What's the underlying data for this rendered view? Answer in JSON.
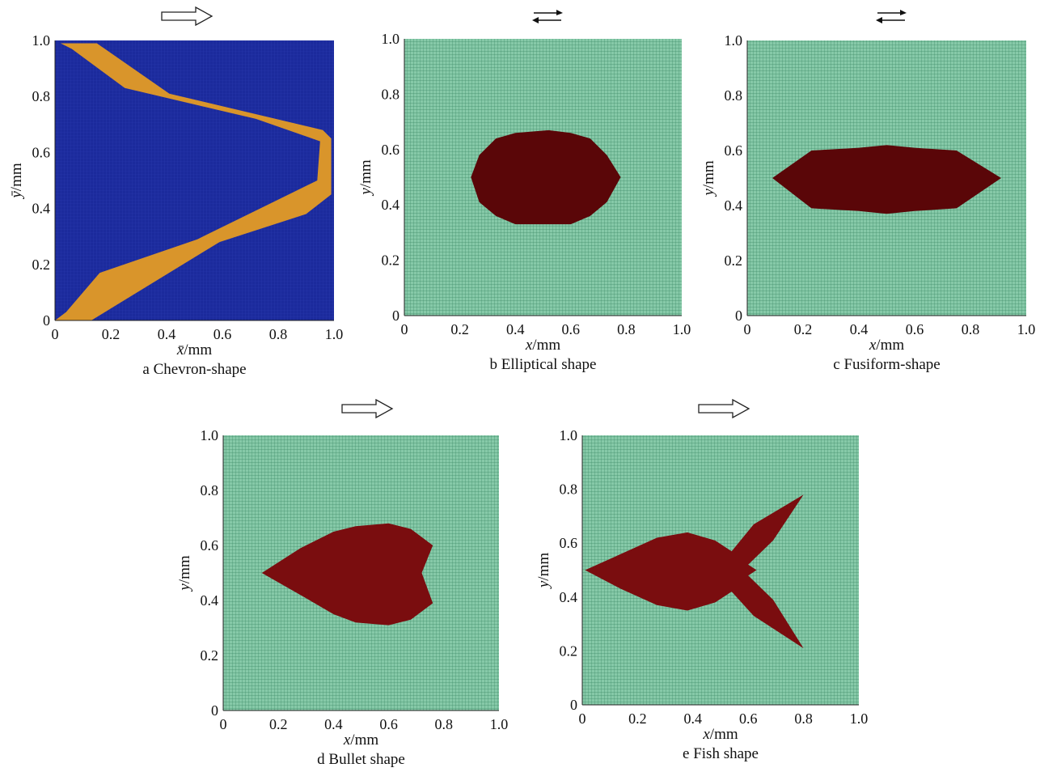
{
  "figure": {
    "panels": [
      {
        "id": "a",
        "caption": "a  Chevron-shape",
        "xlabel_var": "x̄",
        "xlabel_unit": "/mm",
        "ylabel_var": "ȳ",
        "ylabel_unit": "/mm",
        "flow_indicator": "single-arrow-right",
        "x_ticks": [
          "0",
          "0.2",
          "0.4",
          "0.6",
          "0.8",
          "1.0"
        ],
        "y_ticks": [
          "0",
          "0.2",
          "0.4",
          "0.6",
          "0.8",
          "1.0"
        ],
        "background_color": "#1b2a9c",
        "shape_color": "#d9952b",
        "shape_polygon": [
          [
            0.02,
            0.99
          ],
          [
            0.15,
            0.99
          ],
          [
            0.41,
            0.81
          ],
          [
            0.96,
            0.68
          ],
          [
            0.99,
            0.65
          ],
          [
            0.99,
            0.45
          ],
          [
            0.9,
            0.38
          ],
          [
            0.59,
            0.28
          ],
          [
            0.13,
            0.0
          ],
          [
            0.0,
            0.0
          ],
          [
            0.04,
            0.03
          ],
          [
            0.16,
            0.17
          ],
          [
            0.51,
            0.29
          ],
          [
            0.94,
            0.5
          ],
          [
            0.95,
            0.64
          ],
          [
            0.72,
            0.72
          ],
          [
            0.25,
            0.83
          ],
          [
            0.06,
            0.97
          ]
        ]
      },
      {
        "id": "b",
        "caption": "b  Elliptical shape",
        "xlabel_var": "x",
        "xlabel_unit": "/mm",
        "ylabel_var": "y",
        "ylabel_unit": "/mm",
        "flow_indicator": "double-arrow",
        "x_ticks": [
          "0",
          "0.2",
          "0.4",
          "0.6",
          "0.8",
          "1.0"
        ],
        "y_ticks": [
          "0",
          "0.2",
          "0.4",
          "0.6",
          "0.8",
          "1.0"
        ],
        "background_color": "#7fc4a2",
        "shape_color": "#5a0608",
        "shape_polygon": [
          [
            0.24,
            0.5
          ],
          [
            0.27,
            0.58
          ],
          [
            0.33,
            0.64
          ],
          [
            0.4,
            0.66
          ],
          [
            0.52,
            0.67
          ],
          [
            0.6,
            0.66
          ],
          [
            0.67,
            0.64
          ],
          [
            0.73,
            0.58
          ],
          [
            0.78,
            0.5
          ],
          [
            0.73,
            0.41
          ],
          [
            0.67,
            0.36
          ],
          [
            0.6,
            0.33
          ],
          [
            0.4,
            0.33
          ],
          [
            0.33,
            0.36
          ],
          [
            0.27,
            0.41
          ]
        ]
      },
      {
        "id": "c",
        "caption": "c  Fusiform-shape",
        "xlabel_var": "x",
        "xlabel_unit": "/mm",
        "ylabel_var": "y",
        "ylabel_unit": "/mm",
        "flow_indicator": "double-arrow",
        "x_ticks": [
          "0",
          "0.2",
          "0.4",
          "0.6",
          "0.8",
          "1.0"
        ],
        "y_ticks": [
          "0",
          "0.2",
          "0.4",
          "0.6",
          "0.8",
          "1.0"
        ],
        "background_color": "#7fc4a2",
        "shape_color": "#5a0608",
        "shape_polygon": [
          [
            0.09,
            0.5
          ],
          [
            0.23,
            0.6
          ],
          [
            0.4,
            0.61
          ],
          [
            0.5,
            0.62
          ],
          [
            0.6,
            0.61
          ],
          [
            0.75,
            0.6
          ],
          [
            0.91,
            0.5
          ],
          [
            0.75,
            0.39
          ],
          [
            0.6,
            0.38
          ],
          [
            0.5,
            0.37
          ],
          [
            0.4,
            0.38
          ],
          [
            0.23,
            0.39
          ]
        ]
      },
      {
        "id": "d",
        "caption": "d  Bullet shape",
        "xlabel_var": "x",
        "xlabel_unit": "/mm",
        "ylabel_var": "y",
        "ylabel_unit": "/mm",
        "flow_indicator": "single-arrow-right",
        "x_ticks": [
          "0",
          "0.2",
          "0.4",
          "0.6",
          "0.8",
          "1.0"
        ],
        "y_ticks": [
          "0",
          "0.2",
          "0.4",
          "0.6",
          "0.8",
          "1.0"
        ],
        "background_color": "#7fc4a2",
        "shape_color": "#7a0d0f",
        "shape_polygon": [
          [
            0.14,
            0.5
          ],
          [
            0.28,
            0.59
          ],
          [
            0.4,
            0.65
          ],
          [
            0.48,
            0.67
          ],
          [
            0.6,
            0.68
          ],
          [
            0.68,
            0.66
          ],
          [
            0.76,
            0.6
          ],
          [
            0.72,
            0.5
          ],
          [
            0.76,
            0.39
          ],
          [
            0.68,
            0.33
          ],
          [
            0.6,
            0.31
          ],
          [
            0.48,
            0.32
          ],
          [
            0.4,
            0.35
          ],
          [
            0.28,
            0.42
          ]
        ]
      },
      {
        "id": "e",
        "caption": "e  Fish shape",
        "xlabel_var": "x",
        "xlabel_unit": "/mm",
        "ylabel_var": "y",
        "ylabel_unit": "/mm",
        "flow_indicator": "single-arrow-right",
        "x_ticks": [
          "0",
          "0.2",
          "0.4",
          "0.6",
          "0.8",
          "1.0"
        ],
        "y_ticks": [
          "0",
          "0.2",
          "0.4",
          "0.6",
          "0.8",
          "1.0"
        ],
        "background_color": "#7fc4a2",
        "shape_color": "#7a0d0f",
        "shape_polygon": [
          [
            0.01,
            0.5
          ],
          [
            0.14,
            0.56
          ],
          [
            0.27,
            0.62
          ],
          [
            0.38,
            0.64
          ],
          [
            0.48,
            0.61
          ],
          [
            0.54,
            0.57
          ],
          [
            0.62,
            0.67
          ],
          [
            0.8,
            0.78
          ],
          [
            0.69,
            0.61
          ],
          [
            0.6,
            0.52
          ],
          [
            0.63,
            0.5
          ],
          [
            0.6,
            0.48
          ],
          [
            0.69,
            0.39
          ],
          [
            0.8,
            0.21
          ],
          [
            0.62,
            0.33
          ],
          [
            0.54,
            0.42
          ],
          [
            0.48,
            0.38
          ],
          [
            0.38,
            0.35
          ],
          [
            0.27,
            0.37
          ],
          [
            0.14,
            0.43
          ]
        ]
      }
    ]
  }
}
